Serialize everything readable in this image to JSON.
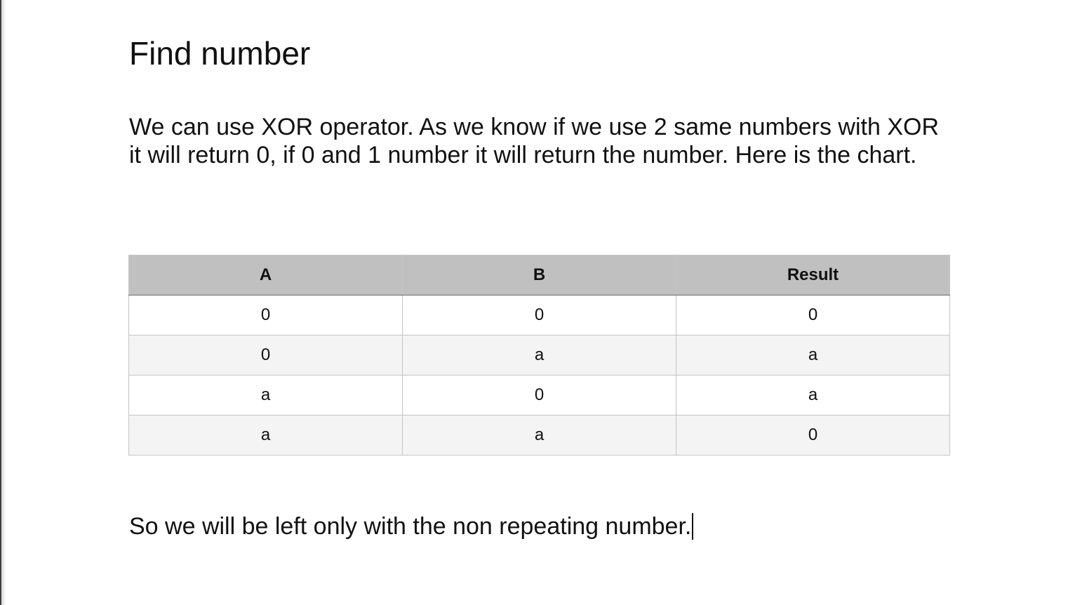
{
  "document": {
    "title": "Find number",
    "paragraph": "We can use XOR operator. As we know if we use 2 same numbers with XOR it will return 0, if 0 and 1 number it will return the number. Here is the chart.",
    "conclusion": "So we will be left only with the non repeating number."
  },
  "table": {
    "headers": [
      "A",
      "B",
      "Result"
    ],
    "rows": [
      [
        "0",
        "0",
        "0"
      ],
      [
        "0",
        "a",
        "a"
      ],
      [
        "a",
        "0",
        "a"
      ],
      [
        "a",
        "a",
        "0"
      ]
    ]
  },
  "colors": {
    "header_background": "#bfc0bf",
    "alternate_row_background": "#f4f4f4",
    "text": "#111111"
  }
}
